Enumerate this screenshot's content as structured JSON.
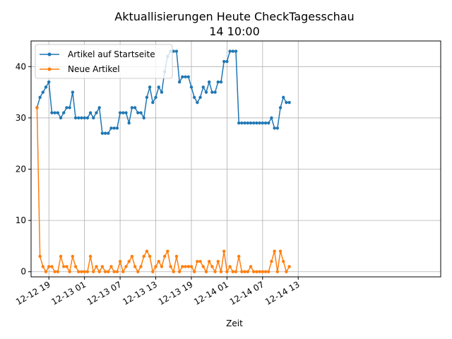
{
  "chart_data": {
    "type": "line",
    "title": "Aktuallisierungen Heute CheckTagesschau",
    "subtitle": "14 10:00",
    "xlabel": "Zeit",
    "ylabel": "",
    "x_unit": "hours",
    "x_start": "12-12 17",
    "x_step_hours": 0.5,
    "xlim_hours": [
      -1,
      68
    ],
    "ylim": [
      -1,
      45
    ],
    "grid": true,
    "legend_position": "top-left",
    "x_ticks": [
      {
        "hours": 2,
        "label": "12-12 19"
      },
      {
        "hours": 8,
        "label": "12-13 01"
      },
      {
        "hours": 14,
        "label": "12-13 07"
      },
      {
        "hours": 20,
        "label": "12-13 13"
      },
      {
        "hours": 26,
        "label": "12-13 19"
      },
      {
        "hours": 32,
        "label": "12-14 01"
      },
      {
        "hours": 38,
        "label": "12-14 07"
      },
      {
        "hours": 44,
        "label": "12-14 13"
      }
    ],
    "y_ticks": [
      0,
      10,
      20,
      30,
      40
    ],
    "series": [
      {
        "name": "Artikel auf Startseite",
        "color": "#1f77b4",
        "values": [
          32,
          34,
          35,
          36,
          37,
          31,
          31,
          31,
          30,
          31,
          32,
          32,
          35,
          30,
          30,
          30,
          30,
          30,
          31,
          30,
          31,
          32,
          27,
          27,
          27,
          28,
          28,
          28,
          31,
          31,
          31,
          29,
          32,
          32,
          31,
          31,
          30,
          34,
          36,
          33,
          34,
          36,
          35,
          39,
          42,
          43,
          43,
          43,
          37,
          38,
          38,
          38,
          36,
          34,
          33,
          34,
          36,
          35,
          37,
          35,
          35,
          37,
          37,
          41,
          41,
          43,
          43,
          43,
          29,
          29,
          29,
          29,
          29,
          29,
          29,
          29,
          29,
          29,
          29,
          30,
          28,
          28,
          32,
          34,
          33,
          33
        ]
      },
      {
        "name": "Neue Artikel",
        "color": "#ff7f0e",
        "values": [
          32,
          3,
          1,
          0,
          1,
          1,
          0,
          0,
          3,
          1,
          1,
          0,
          3,
          1,
          0,
          0,
          0,
          0,
          3,
          0,
          1,
          0,
          1,
          0,
          0,
          1,
          0,
          0,
          2,
          0,
          1,
          2,
          3,
          1,
          0,
          1,
          3,
          4,
          3,
          0,
          1,
          2,
          1,
          3,
          4,
          1,
          0,
          3,
          0,
          1,
          1,
          1,
          1,
          0,
          2,
          2,
          1,
          0,
          2,
          1,
          0,
          2,
          0,
          4,
          0,
          1,
          0,
          0,
          3,
          0,
          0,
          0,
          1,
          0,
          0,
          0,
          0,
          0,
          0,
          2,
          4,
          0,
          4,
          2,
          0,
          1
        ]
      }
    ]
  }
}
